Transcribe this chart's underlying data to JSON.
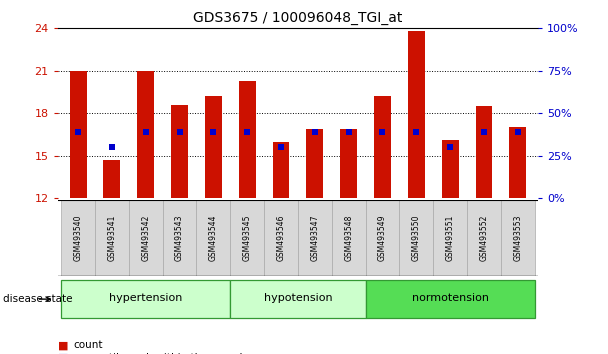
{
  "title": "GDS3675 / 100096048_TGI_at",
  "samples": [
    "GSM493540",
    "GSM493541",
    "GSM493542",
    "GSM493543",
    "GSM493544",
    "GSM493545",
    "GSM493546",
    "GSM493547",
    "GSM493548",
    "GSM493549",
    "GSM493550",
    "GSM493551",
    "GSM493552",
    "GSM493553"
  ],
  "count_values": [
    21.0,
    14.7,
    21.0,
    18.6,
    19.2,
    20.3,
    16.0,
    16.9,
    16.9,
    19.2,
    23.8,
    16.1,
    18.5,
    17.0
  ],
  "percentile_y": [
    16.7,
    15.6,
    16.7,
    16.7,
    16.7,
    16.7,
    15.6,
    16.7,
    16.7,
    16.7,
    16.7,
    15.6,
    16.7,
    16.7
  ],
  "ymin": 12,
  "ymax": 24,
  "yticks_left": [
    12,
    15,
    18,
    21,
    24
  ],
  "right_yticks_pct": [
    0,
    25,
    50,
    75,
    100
  ],
  "group_boundaries": [
    {
      "label": "hypertension",
      "start": 0,
      "end": 4,
      "light": true
    },
    {
      "label": "hypotension",
      "start": 5,
      "end": 8,
      "light": true
    },
    {
      "label": "normotension",
      "start": 9,
      "end": 13,
      "light": false
    }
  ],
  "bar_color": "#cc1100",
  "dot_color": "#0000cc",
  "bg_color": "#ffffff",
  "sample_box_color": "#d8d8d8",
  "group_light_color": "#ccffcc",
  "group_dark_color": "#55dd55",
  "group_border_color": "#339933",
  "figsize": [
    6.08,
    3.54
  ],
  "dpi": 100
}
